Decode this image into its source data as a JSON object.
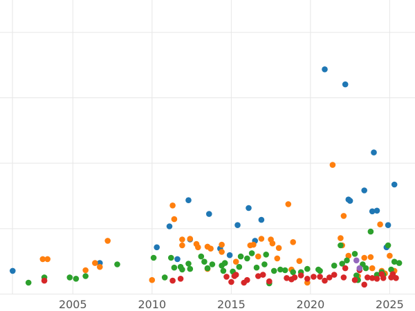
{
  "chart_data": {
    "type": "scatter",
    "title": "",
    "xlabel": "",
    "ylabel": "",
    "xlim": [
      2000.4,
      2026.6
    ],
    "ylim": [
      0,
      450
    ],
    "grid": true,
    "legend": "none",
    "x_ticks": [
      2005,
      2010,
      2015,
      2020,
      2025
    ],
    "x_tick_labels": [
      "2005",
      "2010",
      "2015",
      "2020",
      "2025"
    ],
    "y_gridlines": [
      0,
      100,
      200,
      300,
      400
    ],
    "colors": {
      "blue": "#1f77b4",
      "orange": "#ff7f0e",
      "green": "#2ca02c",
      "red": "#d62728",
      "purple": "#9467bd"
    },
    "series": [
      {
        "color": "blue",
        "points": [
          [
            2001.2,
            36
          ],
          [
            2006.7,
            48
          ],
          [
            2010.3,
            72
          ],
          [
            2011.1,
            104
          ],
          [
            2011.6,
            54
          ],
          [
            2012.3,
            144
          ],
          [
            2012.4,
            84
          ],
          [
            2013.6,
            123
          ],
          [
            2014.3,
            70
          ],
          [
            2014.9,
            60
          ],
          [
            2015.4,
            106
          ],
          [
            2016.1,
            132
          ],
          [
            2016.5,
            82
          ],
          [
            2016.9,
            114
          ],
          [
            2020.9,
            344
          ],
          [
            2022.2,
            321
          ],
          [
            2022.4,
            145
          ],
          [
            2022.5,
            143
          ],
          [
            2023.4,
            159
          ],
          [
            2023.9,
            127
          ],
          [
            2024.0,
            217
          ],
          [
            2024.2,
            128
          ],
          [
            2024.8,
            72
          ],
          [
            2024.9,
            106
          ],
          [
            2025.3,
            168
          ]
        ]
      },
      {
        "color": "orange",
        "points": [
          [
            2003.1,
            54
          ],
          [
            2003.4,
            54
          ],
          [
            2005.8,
            37
          ],
          [
            2006.4,
            48
          ],
          [
            2006.7,
            42
          ],
          [
            2007.2,
            82
          ],
          [
            2010.0,
            22
          ],
          [
            2011.3,
            136
          ],
          [
            2011.4,
            115
          ],
          [
            2011.9,
            84
          ],
          [
            2011.9,
            75
          ],
          [
            2012.4,
            85
          ],
          [
            2012.8,
            77
          ],
          [
            2012.9,
            72
          ],
          [
            2013.5,
            73
          ],
          [
            2013.7,
            70
          ],
          [
            2013.5,
            39
          ],
          [
            2014.4,
            65
          ],
          [
            2014.4,
            76
          ],
          [
            2015.3,
            50
          ],
          [
            2016.2,
            75
          ],
          [
            2016.4,
            76
          ],
          [
            2016.7,
            58
          ],
          [
            2016.9,
            85
          ],
          [
            2017.5,
            84
          ],
          [
            2017.6,
            78
          ],
          [
            2017.9,
            55
          ],
          [
            2018.0,
            71
          ],
          [
            2018.6,
            138
          ],
          [
            2018.8,
            38
          ],
          [
            2018.9,
            80
          ],
          [
            2019.3,
            51
          ],
          [
            2019.8,
            18
          ],
          [
            2021.4,
            198
          ],
          [
            2021.9,
            86
          ],
          [
            2022.0,
            75
          ],
          [
            2022.1,
            120
          ],
          [
            2022.4,
            59
          ],
          [
            2023.0,
            28
          ],
          [
            2023.4,
            56
          ],
          [
            2023.8,
            57
          ],
          [
            2023.9,
            40
          ],
          [
            2024.4,
            107
          ],
          [
            2024.5,
            36
          ],
          [
            2024.7,
            32
          ],
          [
            2025.0,
            59
          ],
          [
            2025.3,
            36
          ]
        ]
      },
      {
        "color": "green",
        "points": [
          [
            2002.2,
            18
          ],
          [
            2003.2,
            26
          ],
          [
            2004.8,
            26
          ],
          [
            2005.2,
            24
          ],
          [
            2005.8,
            28
          ],
          [
            2007.8,
            46
          ],
          [
            2010.1,
            56
          ],
          [
            2010.8,
            26
          ],
          [
            2011.2,
            56
          ],
          [
            2011.4,
            41
          ],
          [
            2011.8,
            42
          ],
          [
            2011.9,
            38
          ],
          [
            2012.3,
            47
          ],
          [
            2012.4,
            39
          ],
          [
            2013.1,
            58
          ],
          [
            2013.3,
            50
          ],
          [
            2013.5,
            40
          ],
          [
            2013.8,
            46
          ],
          [
            2014.4,
            44
          ],
          [
            2014.5,
            36
          ],
          [
            2014.6,
            48
          ],
          [
            2015.1,
            35
          ],
          [
            2015.5,
            42
          ],
          [
            2015.6,
            58
          ],
          [
            2016.0,
            55
          ],
          [
            2016.3,
            63
          ],
          [
            2016.6,
            41
          ],
          [
            2017.1,
            46
          ],
          [
            2017.2,
            61
          ],
          [
            2017.4,
            17
          ],
          [
            2017.7,
            36
          ],
          [
            2018.1,
            38
          ],
          [
            2018.4,
            37
          ],
          [
            2018.9,
            34
          ],
          [
            2019.4,
            34
          ],
          [
            2019.8,
            39
          ],
          [
            2020.5,
            38
          ],
          [
            2020.6,
            36
          ],
          [
            2021.5,
            44
          ],
          [
            2021.9,
            75
          ],
          [
            2022.0,
            47
          ],
          [
            2022.3,
            52
          ],
          [
            2022.8,
            62
          ],
          [
            2022.9,
            29
          ],
          [
            2023.0,
            22
          ],
          [
            2023.3,
            46
          ],
          [
            2023.5,
            40
          ],
          [
            2023.8,
            96
          ],
          [
            2024.2,
            30
          ],
          [
            2024.5,
            34
          ],
          [
            2024.6,
            30
          ],
          [
            2024.9,
            75
          ],
          [
            2025.1,
            38
          ],
          [
            2025.3,
            50
          ],
          [
            2025.6,
            48
          ]
        ]
      },
      {
        "color": "red",
        "points": [
          [
            2003.2,
            21
          ],
          [
            2011.3,
            21
          ],
          [
            2011.8,
            24
          ],
          [
            2014.7,
            27
          ],
          [
            2015.0,
            19
          ],
          [
            2015.2,
            28
          ],
          [
            2015.3,
            30
          ],
          [
            2015.8,
            18
          ],
          [
            2016.0,
            22
          ],
          [
            2016.7,
            28
          ],
          [
            2017.0,
            30
          ],
          [
            2017.4,
            20
          ],
          [
            2018.5,
            25
          ],
          [
            2018.8,
            23
          ],
          [
            2019.0,
            26
          ],
          [
            2019.4,
            29
          ],
          [
            2019.8,
            24
          ],
          [
            2020.2,
            27
          ],
          [
            2020.6,
            27
          ],
          [
            2020.9,
            21
          ],
          [
            2021.2,
            26
          ],
          [
            2021.5,
            30
          ],
          [
            2022.1,
            26
          ],
          [
            2022.2,
            40
          ],
          [
            2022.8,
            22
          ],
          [
            2023.1,
            37
          ],
          [
            2023.4,
            15
          ],
          [
            2023.6,
            26
          ],
          [
            2023.9,
            25
          ],
          [
            2024.2,
            24
          ],
          [
            2024.5,
            31
          ],
          [
            2024.6,
            25
          ],
          [
            2025.1,
            26
          ],
          [
            2025.2,
            31
          ],
          [
            2025.4,
            25
          ]
        ]
      },
      {
        "color": "purple",
        "points": [
          [
            2022.9,
            52
          ],
          [
            2023.1,
            40
          ]
        ]
      }
    ]
  }
}
